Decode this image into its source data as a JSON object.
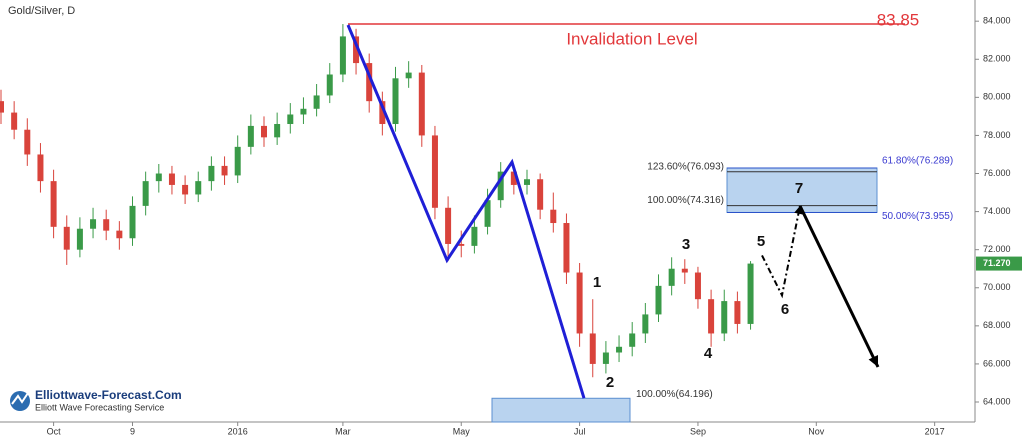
{
  "chart_data": {
    "type": "candlestick",
    "title": "Gold/Silver, D",
    "categories": [
      null,
      null,
      null,
      null,
      "Oct",
      null,
      null,
      null,
      null,
      null,
      "9",
      null,
      null,
      null,
      null,
      null,
      null,
      null,
      "2016",
      null,
      null,
      null,
      null,
      null,
      null,
      null,
      "Mar",
      null,
      null,
      null,
      null,
      null,
      null,
      null,
      null,
      "May",
      null,
      null,
      null,
      null,
      null,
      null,
      null,
      null,
      "Jul",
      null,
      null,
      null,
      null,
      null,
      null,
      null,
      null,
      "Sep",
      null,
      null,
      null,
      null,
      null,
      null,
      null,
      null,
      "Nov",
      null,
      null,
      null,
      null,
      null,
      null,
      null,
      null,
      "2017",
      null,
      null
    ],
    "open": [
      79.8,
      79.2,
      78.3,
      77.0,
      75.6,
      73.2,
      72.0,
      73.1,
      73.6,
      73.0,
      72.6,
      74.3,
      75.6,
      76.0,
      75.4,
      74.9,
      75.6,
      76.4,
      75.9,
      77.4,
      78.5,
      77.9,
      78.6,
      79.1,
      79.4,
      80.1,
      81.2,
      83.2,
      81.8,
      79.8,
      78.6,
      81.0,
      81.3,
      78.0,
      74.2,
      72.3,
      72.2,
      73.2,
      74.6,
      76.1,
      75.4,
      75.7,
      74.1,
      73.4,
      70.8,
      67.6,
      66.0,
      66.6,
      66.9,
      67.6,
      68.6,
      70.1,
      71.0,
      70.8,
      69.4,
      67.6,
      69.3,
      68.1,
      null,
      null,
      null,
      null,
      null,
      null,
      null,
      null,
      null,
      null,
      null,
      null,
      null,
      null,
      null,
      null
    ],
    "high": [
      80.4,
      79.8,
      78.9,
      77.6,
      76.2,
      73.8,
      73.7,
      74.2,
      74.1,
      73.5,
      74.8,
      76.1,
      76.5,
      76.4,
      75.9,
      76.1,
      76.9,
      76.9,
      78.0,
      79.1,
      79.0,
      79.2,
      79.7,
      80.0,
      80.7,
      81.8,
      83.85,
      83.6,
      82.3,
      80.3,
      81.6,
      81.9,
      81.7,
      78.5,
      74.8,
      73.0,
      73.8,
      75.2,
      76.6,
      76.4,
      76.2,
      76.0,
      75.0,
      73.9,
      71.3,
      69.4,
      67.2,
      67.5,
      68.2,
      69.2,
      70.7,
      71.6,
      71.5,
      71.1,
      69.9,
      69.9,
      69.8,
      71.4,
      null,
      null,
      null,
      null,
      null,
      null,
      null,
      null,
      null,
      null,
      null,
      null,
      null,
      null,
      null,
      null
    ],
    "low": [
      78.6,
      77.8,
      76.4,
      75.0,
      72.6,
      71.2,
      71.6,
      72.6,
      72.5,
      72.0,
      72.2,
      73.8,
      75.0,
      74.9,
      74.4,
      74.5,
      75.1,
      75.4,
      75.5,
      77.0,
      77.4,
      77.5,
      78.1,
      78.6,
      79.0,
      79.7,
      80.8,
      81.2,
      79.2,
      78.0,
      78.2,
      80.5,
      77.4,
      73.6,
      71.4,
      71.6,
      71.8,
      72.8,
      74.2,
      74.9,
      74.9,
      73.6,
      72.9,
      70.2,
      66.9,
      65.3,
      65.5,
      66.1,
      66.4,
      67.1,
      68.2,
      69.6,
      70.2,
      68.9,
      66.9,
      67.2,
      67.6,
      67.8,
      null,
      null,
      null,
      null,
      null,
      null,
      null,
      null,
      null,
      null,
      null,
      null,
      null,
      null,
      null,
      null
    ],
    "close": [
      79.2,
      78.3,
      77.0,
      75.6,
      73.2,
      72.0,
      73.1,
      73.6,
      73.0,
      72.6,
      74.3,
      75.6,
      76.0,
      75.4,
      74.9,
      75.6,
      76.4,
      75.9,
      77.4,
      78.5,
      77.9,
      78.6,
      79.1,
      79.4,
      80.1,
      81.2,
      83.2,
      81.8,
      79.8,
      78.6,
      81.0,
      81.3,
      78.0,
      74.2,
      72.3,
      72.2,
      73.2,
      74.6,
      76.1,
      75.4,
      75.7,
      74.1,
      73.4,
      70.8,
      67.6,
      66.0,
      66.6,
      66.9,
      67.6,
      68.6,
      70.1,
      71.0,
      70.8,
      69.4,
      67.6,
      69.3,
      68.1,
      71.27,
      null,
      null,
      null,
      null,
      null,
      null,
      null,
      null,
      null,
      null,
      null,
      null,
      null,
      null,
      null,
      null
    ],
    "up_color": "#3a9a48",
    "down_color": "#d9433b",
    "ylim": [
      62.95,
      84.85
    ],
    "yticks": [
      {
        "value": 64,
        "label": "64.000"
      },
      {
        "value": 66,
        "label": "66.000"
      },
      {
        "value": 68,
        "label": "68.000"
      },
      {
        "value": 70,
        "label": "70.000"
      },
      {
        "value": 72,
        "label": "72.000"
      },
      {
        "value": 74,
        "label": "74.000"
      },
      {
        "value": 76,
        "label": "76.000"
      },
      {
        "value": 78,
        "label": "78.000"
      },
      {
        "value": 80,
        "label": "80.000"
      },
      {
        "value": 82,
        "label": "82.000"
      },
      {
        "value": 84,
        "label": "84.000"
      }
    ],
    "last_price": {
      "value": 71.27,
      "label": "71.270"
    },
    "invalidation": {
      "label": "Invalidation Level",
      "value": 83.85
    },
    "zigzag": [
      83.8,
      71.45,
      76.6,
      64.2
    ],
    "projection": [
      71.7,
      69.6,
      74.3,
      65.84
    ],
    "wave_labels": [
      "1",
      "2",
      "3",
      "4",
      "5",
      "6",
      "7"
    ],
    "fib_left": [
      {
        "value": 76.093,
        "label": "123.60%(76.093)"
      },
      {
        "value": 74.316,
        "label": "100.00%(74.316)"
      }
    ],
    "fib_right": [
      {
        "value": 76.289,
        "label": "61.80%(76.289)"
      },
      {
        "value": 73.955,
        "label": "50.00%(73.955)"
      }
    ],
    "fib_bottom": {
      "value": 64.196,
      "label": "100.00%(64.196)"
    },
    "logo": {
      "name": "Elliottwave-Forecast.Com",
      "tagline": "Elliott Wave Forecasting Service"
    }
  }
}
